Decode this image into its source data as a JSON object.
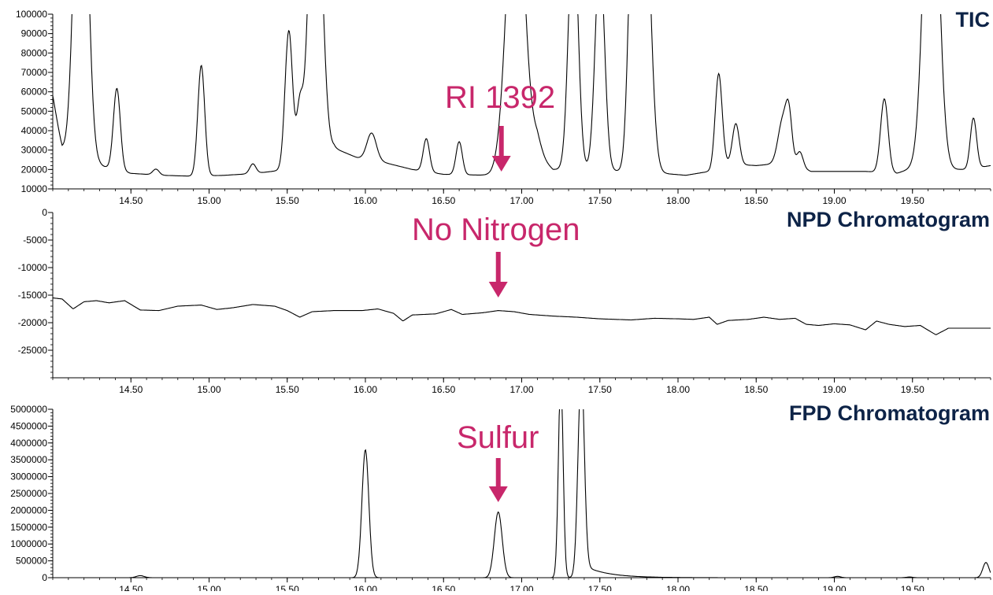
{
  "colors": {
    "title": "#0d2347",
    "annotation": "#c8276b",
    "trace": "#000000"
  },
  "chart_data": [
    {
      "type": "line",
      "title": "TIC",
      "xlabel": "",
      "ylabel": "",
      "xlim": [
        14.0,
        20.0
      ],
      "ylim": [
        10000,
        100000
      ],
      "x_ticks": [
        "14.50",
        "15.00",
        "15.50",
        "16.00",
        "16.50",
        "17.00",
        "17.50",
        "18.00",
        "18.50",
        "19.00",
        "19.50"
      ],
      "y_ticks": [
        "10000",
        "20000",
        "30000",
        "40000",
        "50000",
        "60000",
        "70000",
        "80000",
        "90000",
        "100000"
      ],
      "annotation": {
        "text": "RI 1392",
        "x": 16.87
      },
      "baseline": [
        [
          14.0,
          58000
        ],
        [
          14.06,
          30000
        ],
        [
          14.12,
          22000
        ],
        [
          14.3,
          22000
        ],
        [
          14.5,
          18000
        ],
        [
          14.7,
          17000
        ],
        [
          14.9,
          16500
        ],
        [
          15.1,
          17000
        ],
        [
          15.3,
          18000
        ],
        [
          15.45,
          19500
        ],
        [
          15.7,
          24000
        ],
        [
          15.8,
          31000
        ],
        [
          15.95,
          26000
        ],
        [
          16.1,
          24000
        ],
        [
          16.3,
          20000
        ],
        [
          16.5,
          17500
        ],
        [
          16.8,
          17000
        ],
        [
          16.9,
          18500
        ],
        [
          17.1,
          28000
        ],
        [
          17.2,
          20000
        ],
        [
          17.4,
          20000
        ],
        [
          17.9,
          18000
        ],
        [
          18.05,
          17000
        ],
        [
          18.2,
          19000
        ],
        [
          18.3,
          23000
        ],
        [
          18.5,
          22000
        ],
        [
          18.7,
          23500
        ],
        [
          18.85,
          19000
        ],
        [
          19.0,
          19000
        ],
        [
          19.2,
          19000
        ],
        [
          19.4,
          18000
        ],
        [
          19.55,
          22000
        ],
        [
          19.7,
          20000
        ],
        [
          19.85,
          20000
        ],
        [
          20.0,
          22000
        ]
      ],
      "peaks": [
        {
          "rt": 14.18,
          "height": 220000,
          "width": 0.04
        },
        {
          "rt": 14.41,
          "height": 42000,
          "width": 0.022
        },
        {
          "rt": 14.66,
          "height": 3000,
          "width": 0.02
        },
        {
          "rt": 14.95,
          "height": 57000,
          "width": 0.022
        },
        {
          "rt": 15.28,
          "height": 5000,
          "width": 0.02
        },
        {
          "rt": 15.51,
          "height": 71000,
          "width": 0.024
        },
        {
          "rt": 15.58,
          "height": 28000,
          "width": 0.02
        },
        {
          "rt": 15.68,
          "height": 180000,
          "width": 0.04
        },
        {
          "rt": 16.04,
          "height": 14000,
          "width": 0.03
        },
        {
          "rt": 16.39,
          "height": 17000,
          "width": 0.02
        },
        {
          "rt": 16.6,
          "height": 17000,
          "width": 0.02
        },
        {
          "rt": 16.96,
          "height": 160000,
          "width": 0.055
        },
        {
          "rt": 17.1,
          "height": 6000,
          "width": 0.03
        },
        {
          "rt": 17.33,
          "height": 130000,
          "width": 0.03
        },
        {
          "rt": 17.5,
          "height": 110000,
          "width": 0.03
        },
        {
          "rt": 17.71,
          "height": 120000,
          "width": 0.028
        },
        {
          "rt": 17.78,
          "height": 170000,
          "width": 0.04
        },
        {
          "rt": 18.26,
          "height": 48000,
          "width": 0.022
        },
        {
          "rt": 18.37,
          "height": 21000,
          "width": 0.022
        },
        {
          "rt": 18.67,
          "height": 22000,
          "width": 0.03
        },
        {
          "rt": 18.71,
          "height": 22000,
          "width": 0.02
        },
        {
          "rt": 18.78,
          "height": 8000,
          "width": 0.02
        },
        {
          "rt": 19.32,
          "height": 38000,
          "width": 0.024
        },
        {
          "rt": 19.62,
          "height": 200000,
          "width": 0.045
        },
        {
          "rt": 19.89,
          "height": 26000,
          "width": 0.02
        }
      ]
    },
    {
      "type": "line",
      "title": "NPD Chromatogram",
      "xlabel": "",
      "ylabel": "",
      "xlim": [
        14.0,
        20.0
      ],
      "ylim": [
        -30000,
        0
      ],
      "x_ticks": [
        "14.50",
        "15.00",
        "15.50",
        "16.00",
        "16.50",
        "17.00",
        "17.50",
        "18.00",
        "18.50",
        "19.00",
        "19.50"
      ],
      "y_ticks": [
        "0",
        "-5000",
        "-10000",
        "-15000",
        "-20000",
        "-25000"
      ],
      "annotation": {
        "text": "No Nitrogen",
        "x": 16.85
      },
      "trace": [
        [
          14.0,
          -15500
        ],
        [
          14.06,
          -15700
        ],
        [
          14.13,
          -17500
        ],
        [
          14.2,
          -16200
        ],
        [
          14.28,
          -16000
        ],
        [
          14.36,
          -16400
        ],
        [
          14.46,
          -16000
        ],
        [
          14.56,
          -17700
        ],
        [
          14.68,
          -17800
        ],
        [
          14.8,
          -17000
        ],
        [
          14.95,
          -16800
        ],
        [
          15.05,
          -17600
        ],
        [
          15.15,
          -17300
        ],
        [
          15.28,
          -16700
        ],
        [
          15.42,
          -17000
        ],
        [
          15.5,
          -17800
        ],
        [
          15.58,
          -19000
        ],
        [
          15.66,
          -18000
        ],
        [
          15.8,
          -17800
        ],
        [
          15.98,
          -17800
        ],
        [
          16.08,
          -17500
        ],
        [
          16.18,
          -18300
        ],
        [
          16.24,
          -19700
        ],
        [
          16.3,
          -18600
        ],
        [
          16.45,
          -18400
        ],
        [
          16.55,
          -17600
        ],
        [
          16.62,
          -18500
        ],
        [
          16.75,
          -18200
        ],
        [
          16.85,
          -17800
        ],
        [
          16.95,
          -18000
        ],
        [
          17.05,
          -18500
        ],
        [
          17.2,
          -18800
        ],
        [
          17.35,
          -19000
        ],
        [
          17.5,
          -19300
        ],
        [
          17.7,
          -19500
        ],
        [
          17.85,
          -19200
        ],
        [
          18.0,
          -19300
        ],
        [
          18.1,
          -19400
        ],
        [
          18.2,
          -19000
        ],
        [
          18.25,
          -20300
        ],
        [
          18.32,
          -19600
        ],
        [
          18.45,
          -19400
        ],
        [
          18.55,
          -19000
        ],
        [
          18.65,
          -19400
        ],
        [
          18.75,
          -19200
        ],
        [
          18.82,
          -20300
        ],
        [
          18.9,
          -20500
        ],
        [
          19.0,
          -20200
        ],
        [
          19.1,
          -20400
        ],
        [
          19.2,
          -21300
        ],
        [
          19.27,
          -19700
        ],
        [
          19.35,
          -20300
        ],
        [
          19.45,
          -20700
        ],
        [
          19.55,
          -20500
        ],
        [
          19.65,
          -22200
        ],
        [
          19.73,
          -21000
        ],
        [
          19.85,
          -21000
        ],
        [
          20.0,
          -21000
        ]
      ]
    },
    {
      "type": "line",
      "title": "FPD Chromatogram",
      "xlabel": "",
      "ylabel": "",
      "xlim": [
        14.0,
        20.0
      ],
      "ylim": [
        0,
        5000000
      ],
      "x_ticks": [
        "14.50",
        "15.00",
        "15.50",
        "16.00",
        "16.50",
        "17.00",
        "17.50",
        "18.00",
        "18.50",
        "19.00",
        "19.50"
      ],
      "y_ticks": [
        "0",
        "500000",
        "1000000",
        "1500000",
        "2000000",
        "2500000",
        "3000000",
        "3500000",
        "4000000",
        "4500000",
        "5000000"
      ],
      "annotation": {
        "text": "Sulfur",
        "x": 16.85
      },
      "peaks": [
        {
          "rt": 14.56,
          "height": 60000,
          "width": 0.025
        },
        {
          "rt": 16.0,
          "height": 3800000,
          "width": 0.022
        },
        {
          "rt": 16.85,
          "height": 1950000,
          "width": 0.025
        },
        {
          "rt": 17.25,
          "height": 6000000,
          "width": 0.015
        },
        {
          "rt": 17.38,
          "height": 6000000,
          "width": 0.02
        },
        {
          "rt": 19.02,
          "height": 40000,
          "width": 0.02
        },
        {
          "rt": 19.48,
          "height": 20000,
          "width": 0.02
        },
        {
          "rt": 19.97,
          "height": 450000,
          "width": 0.02
        }
      ],
      "tail": {
        "rt": 17.38,
        "height": 400000,
        "decay": 0.15
      }
    }
  ]
}
